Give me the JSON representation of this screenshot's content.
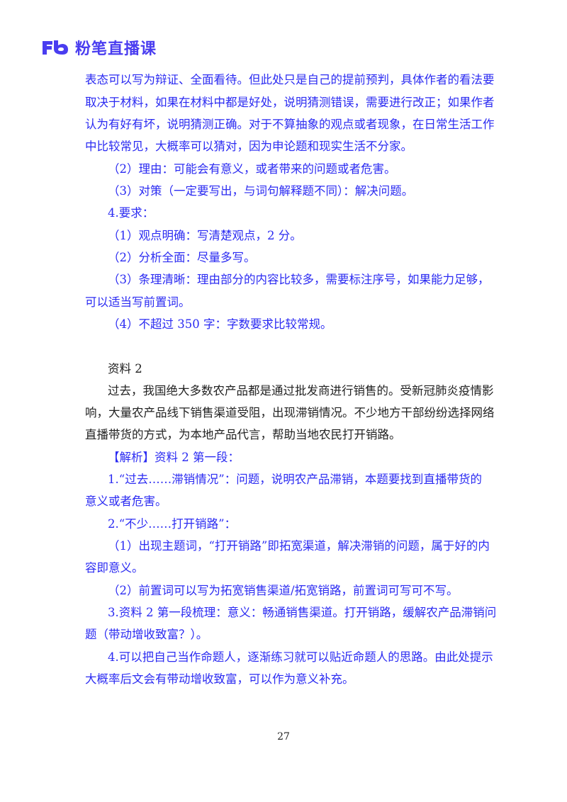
{
  "header": {
    "logo_text": "粉笔直播课",
    "logo_mark": "Fb",
    "brand_color": "#4a3df0"
  },
  "lines": [
    "表态可以写为辩证、全面看待。但此处只是自己的提前预判，具体作者的看法要",
    "取决于材料，如果在材料中都是好处，说明猜测错误，需要进行改正；如果作者",
    "认为有好有坏，说明猜测正确。对于不算抽象的观点或者现象，在日常生活工作",
    "中比较常见，大概率可以猜对，因为申论题和现实生活不分家。",
    "（2）理由：可能会有意义，或者带来的问题或者危害。",
    "（3）对策（一定要写出，与词句解释题不同）：解决问题。",
    "4.要求：",
    "（1）观点明确：写清楚观点，2 分。",
    "（2）分析全面：尽量多写。",
    "（3）条理清晰：理由部分的内容比较多，需要标注序号，如果能力足够，",
    "可以适当写前置词。",
    "（4）不超过 350 字：字数要求比较常规。",
    "资料 2",
    "过去，我国绝大多数农产品都是通过批发商进行销售的。受新冠肺炎疫情影",
    "响，大量农产品线下销售渠道受阻，出现滞销情况。不少地方干部纷纷选择网络",
    "直播带货的方式，为本地产品代言，帮助当地农民打开销路。",
    "【解析】资料 2 第一段：",
    "1.“过去……滞销情况”：问题，说明农产品滞销，本题要找到直播带货的",
    "意义或者危害。",
    "2.“不少……打开销路”：",
    "（1）出现主题词，“打开销路”即拓宽渠道，解决滞销的问题，属于好的内",
    "容即意义。",
    "（2）前置词可以写为拓宽销售渠道/拓宽销路，前置词可写可不写。",
    "3.资料 2 第一段梳理：意义：畅通销售渠道。打开销路，缓解农产品滞销问",
    "题（带动增收致富？）。",
    "4.可以把自己当作命题人，逐渐练习就可以贴近命题人的思路。由此处提示",
    "大概率后文会有带动增收致富，可以作为意义补充。"
  ],
  "page_number": "27",
  "colors": {
    "annotation_text": "#2b2bf2",
    "body_text": "#222222"
  }
}
